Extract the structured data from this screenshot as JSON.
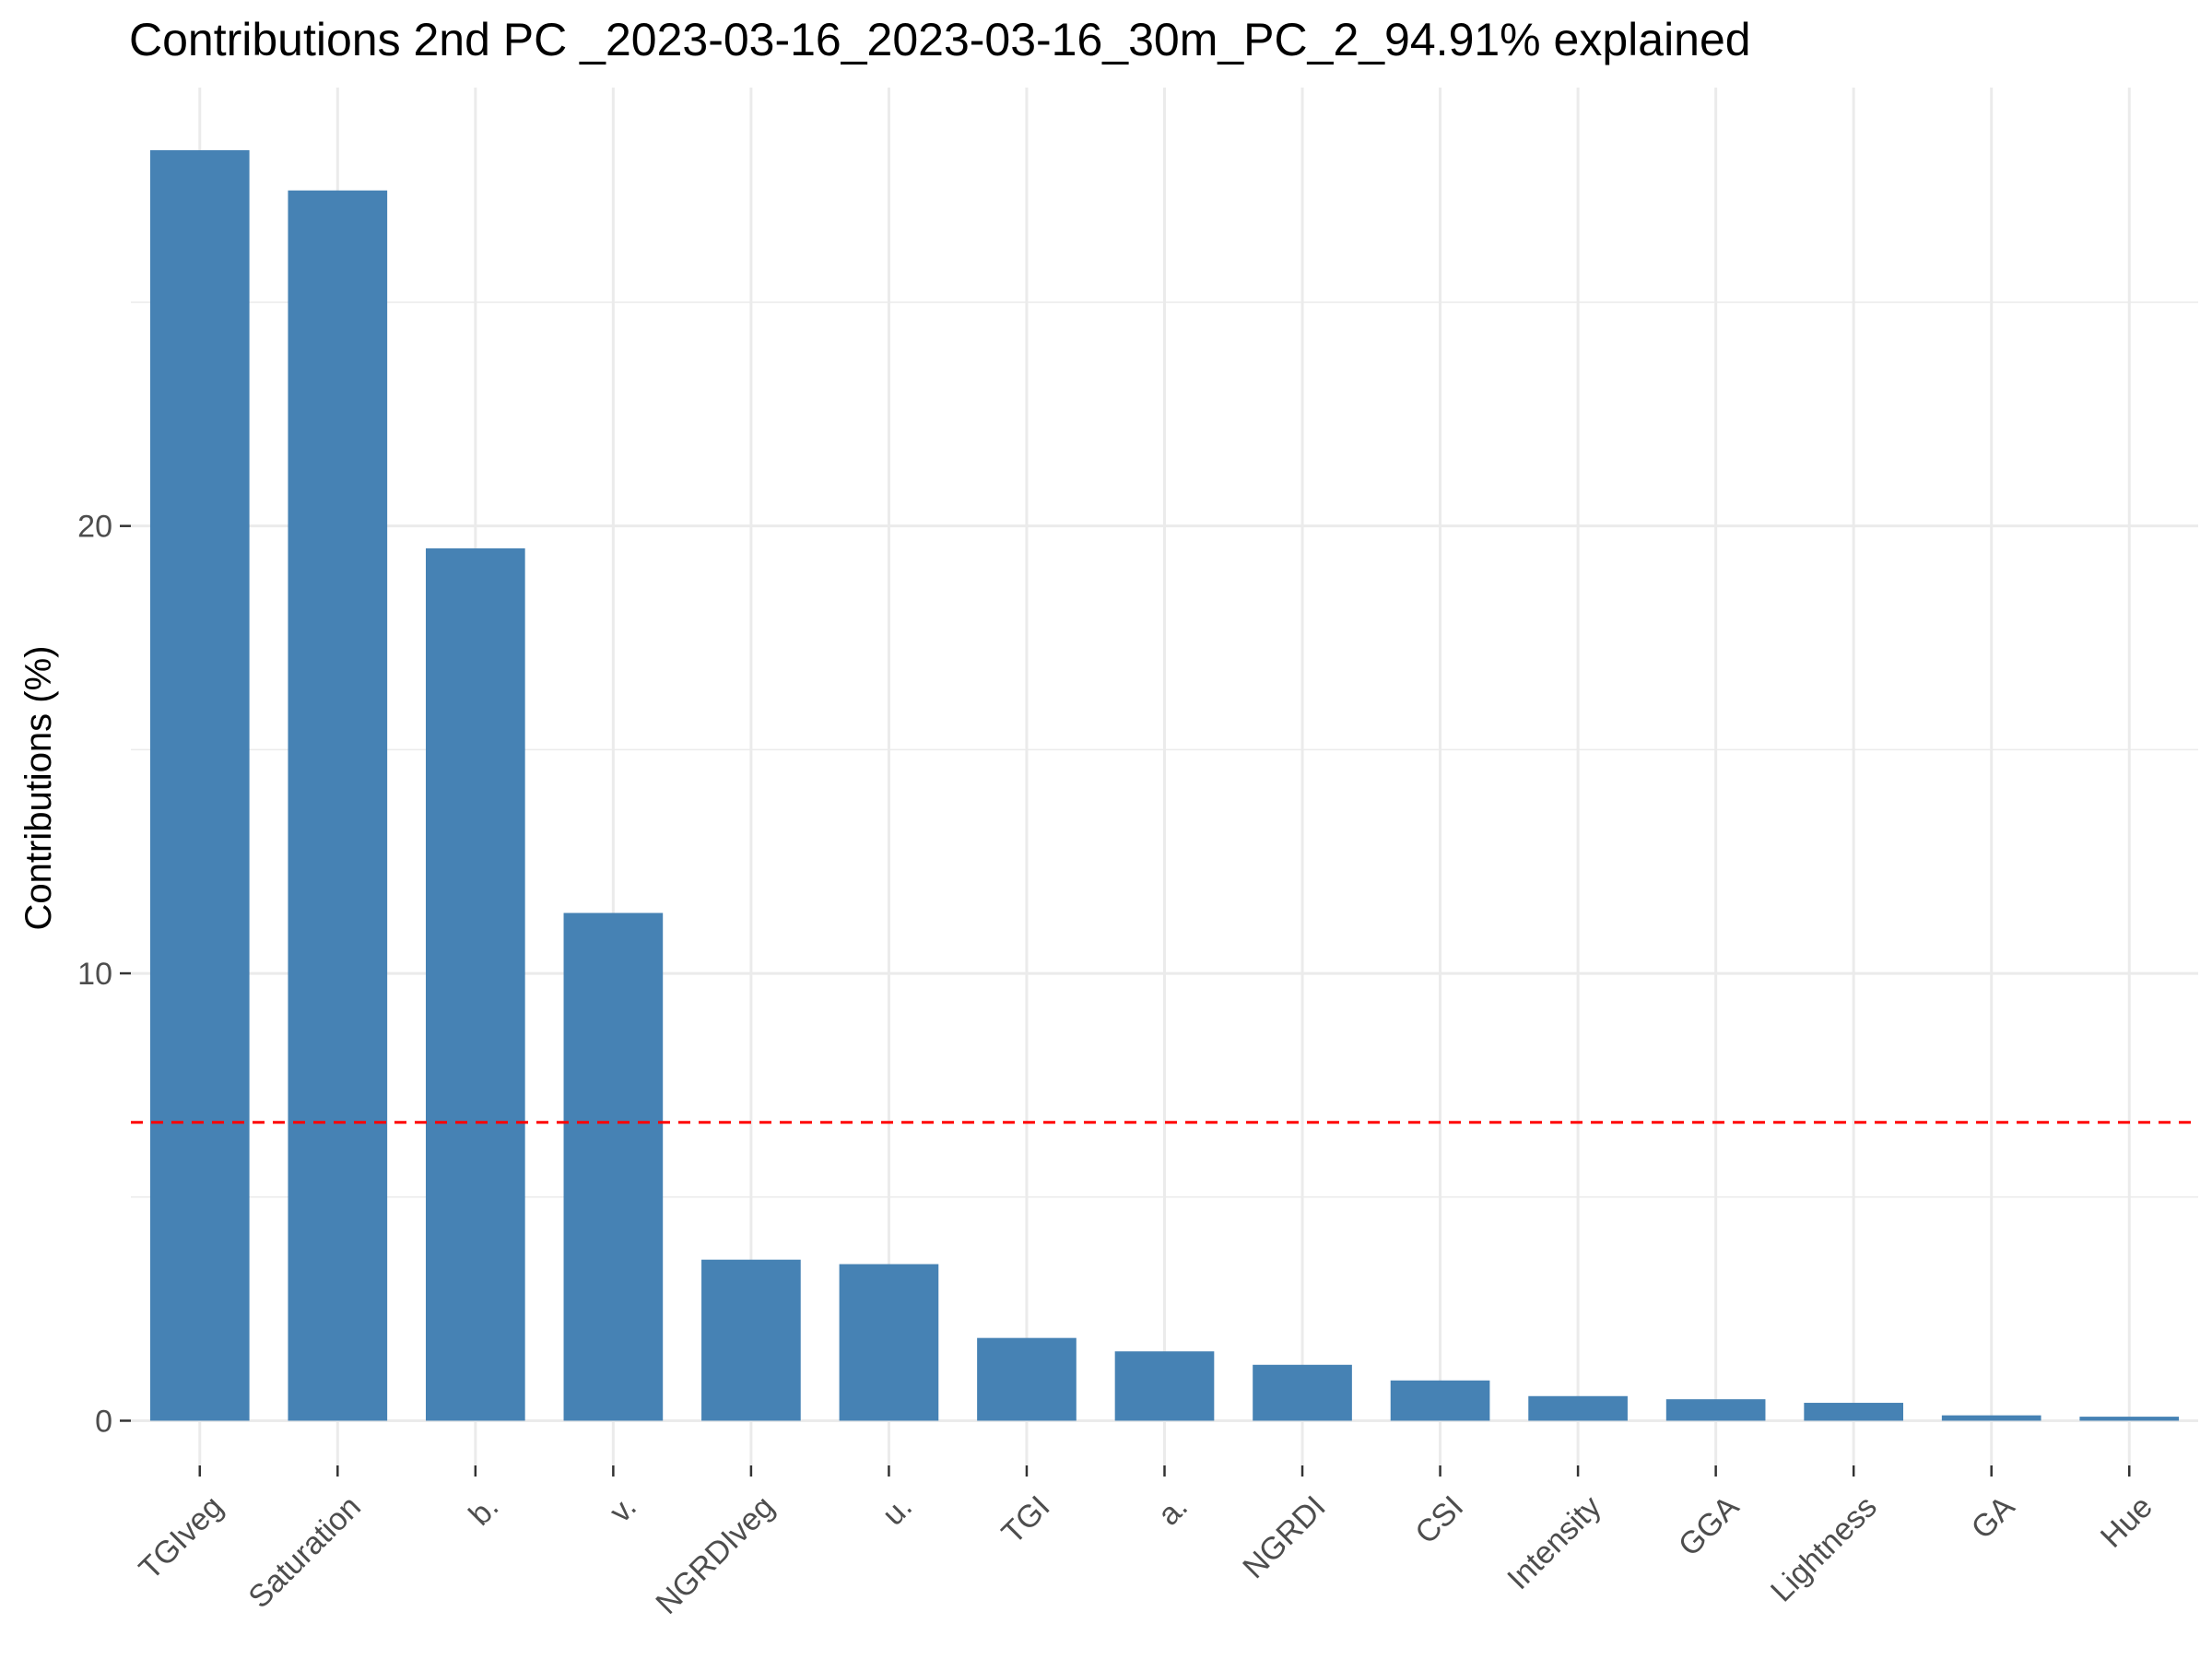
{
  "chart_data": {
    "type": "bar",
    "title": "Contributions 2nd PC _2023-03-16_2023-03-16_30m_PC_2_94.91% explained",
    "xlabel": "",
    "ylabel": "Contributions (%)",
    "categories": [
      "TGIveg",
      "Saturation",
      "b.",
      "v.",
      "NGRDIveg",
      "u.",
      "TGI",
      "a.",
      "NGRDI",
      "CSI",
      "Intensity",
      "GGA",
      "Lightness",
      "GA",
      "Hue"
    ],
    "values": [
      28.4,
      27.5,
      19.5,
      11.35,
      3.6,
      3.5,
      1.85,
      1.55,
      1.25,
      0.9,
      0.55,
      0.48,
      0.4,
      0.12,
      0.09
    ],
    "ylim": [
      -1.0,
      29.8
    ],
    "yticks": [
      0,
      10,
      20
    ],
    "ytick_labels": [
      "0",
      "10",
      "20"
    ],
    "reference_line": {
      "value": 6.67,
      "color": "#ff0000",
      "style": "dashed"
    },
    "bar_color": "#4682b4",
    "grid": true,
    "grid_color": "#ebebeb",
    "background": "#ffffff",
    "legend": "none"
  }
}
